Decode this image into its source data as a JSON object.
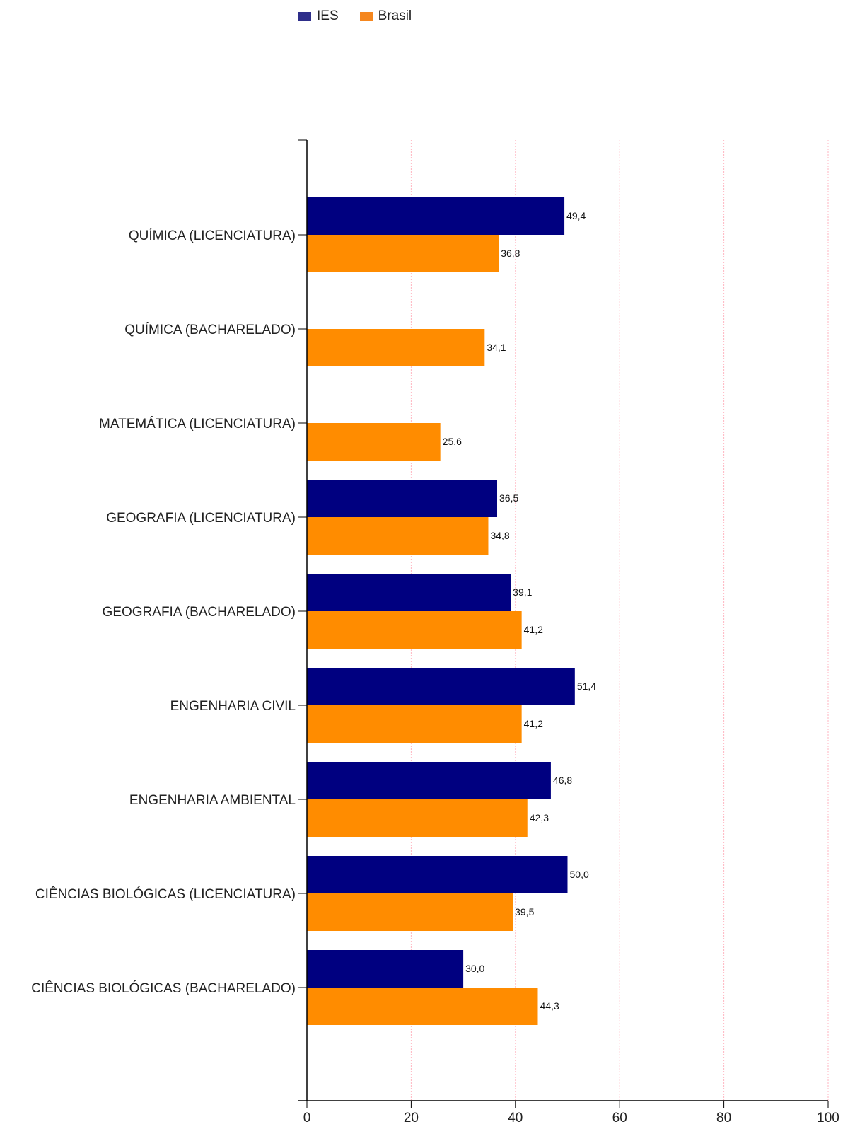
{
  "chart_data": {
    "type": "bar",
    "orientation": "horizontal",
    "categories": [
      "QUÍMICA (LICENCIATURA)",
      "QUÍMICA (BACHARELADO)",
      "MATEMÁTICA (LICENCIATURA)",
      "GEOGRAFIA (LICENCIATURA)",
      "GEOGRAFIA (BACHARELADO)",
      "ENGENHARIA CIVIL",
      "ENGENHARIA AMBIENTAL",
      "CIÊNCIAS BIOLÓGICAS (LICENCIATURA)",
      "CIÊNCIAS BIOLÓGICAS (BACHARELADO)"
    ],
    "series": [
      {
        "name": "IES",
        "color": "#000080",
        "values": [
          49.4,
          null,
          null,
          36.5,
          39.1,
          51.4,
          46.8,
          50.0,
          30.0
        ],
        "labels": [
          "49,4",
          "",
          "",
          "36,5",
          "39,1",
          "51,4",
          "46,8",
          "50,0",
          "30,0"
        ]
      },
      {
        "name": "Brasil",
        "color": "#FF8C00",
        "values": [
          36.8,
          34.1,
          25.6,
          34.8,
          41.2,
          41.2,
          42.3,
          39.5,
          44.3
        ],
        "labels": [
          "36,8",
          "34,1",
          "25,6",
          "34,8",
          "41,2",
          "41,2",
          "42,3",
          "39,5",
          "44,3"
        ]
      }
    ],
    "xlim": [
      0,
      100
    ],
    "xticks": [
      "0",
      "20",
      "40",
      "60",
      "80",
      "100"
    ],
    "grid": true,
    "grid_color": "#FFB6C1",
    "legend_position": "top"
  },
  "legend": {
    "items": [
      {
        "label": "IES",
        "color": "#2E2E8A"
      },
      {
        "label": "Brasil",
        "color": "#F5871F"
      }
    ]
  }
}
